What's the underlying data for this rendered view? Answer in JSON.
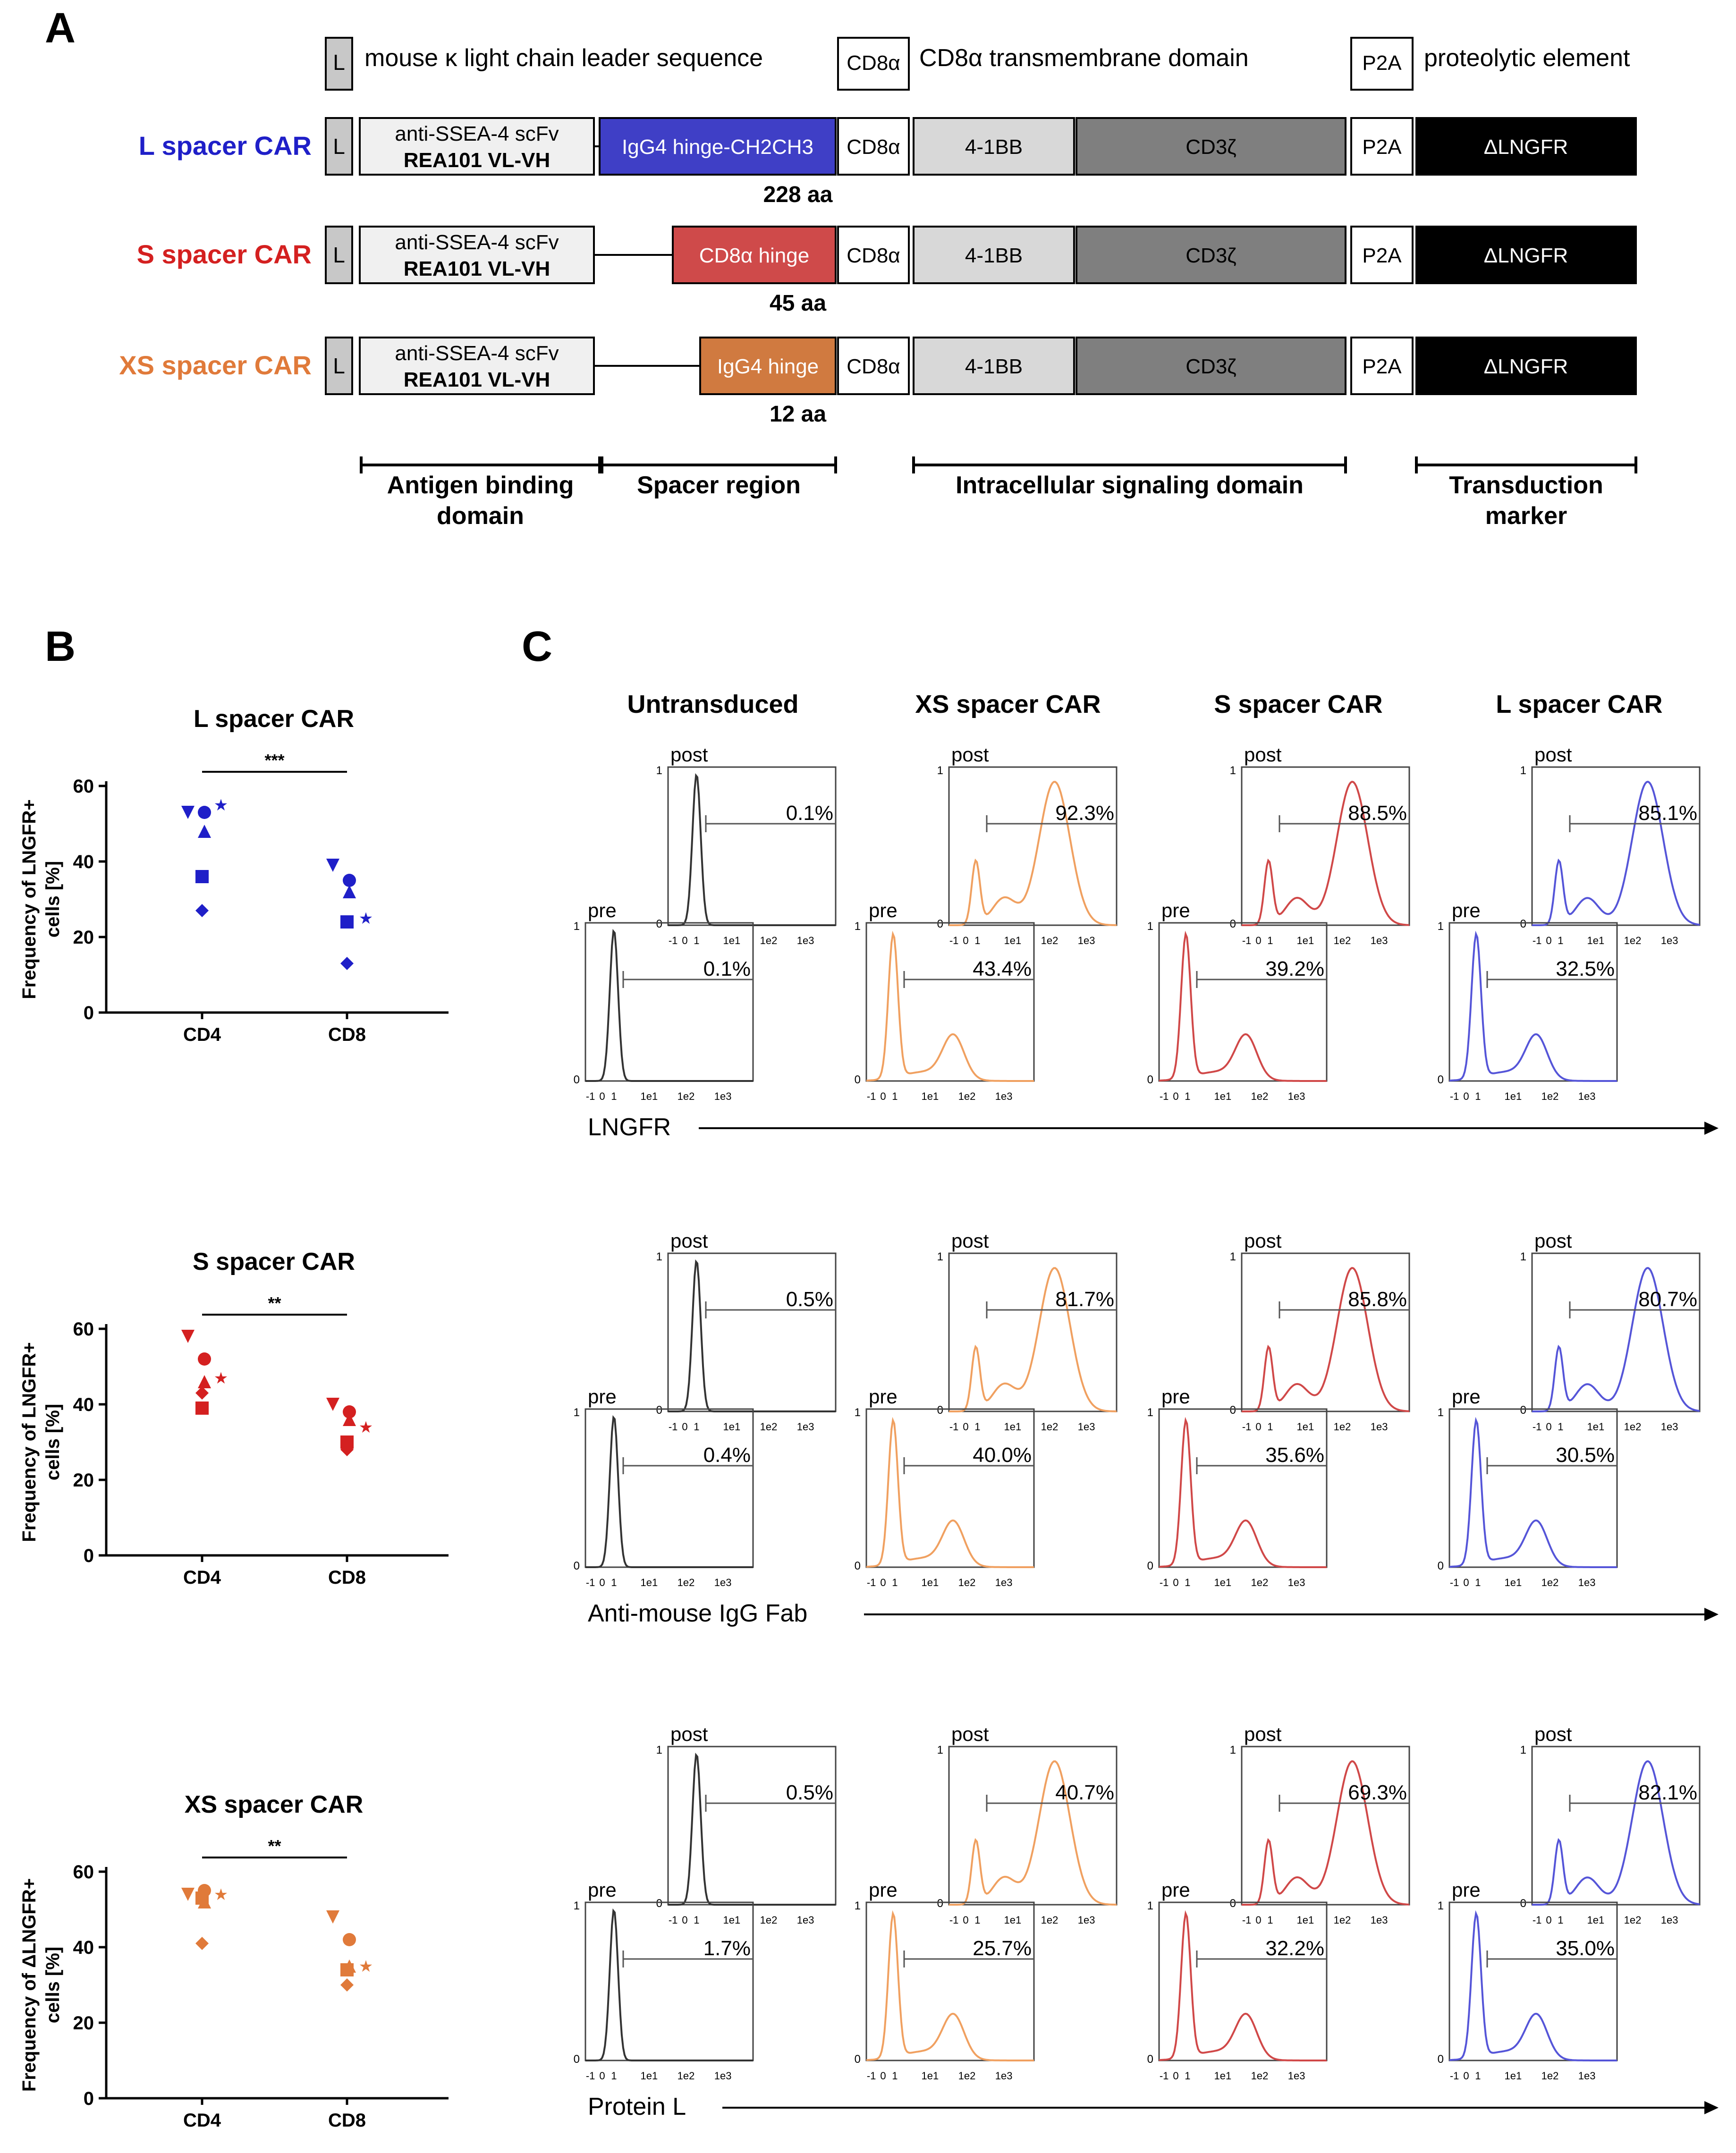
{
  "panel_a": {
    "letter": "A",
    "legend": {
      "l_box": "L",
      "l_text": "mouse κ light chain leader sequence",
      "cd8_box": "CD8α",
      "cd8_text": "CD8α transmembrane domain",
      "p2a_box": "P2A",
      "p2a_text": "proteolytic element"
    },
    "constructs": [
      {
        "label": "L spacer CAR",
        "color": "#1f1fc8",
        "scfv_line1": "anti-SSEA-4 scFv",
        "scfv_line2": "REA101 VL-VH",
        "spacer": "IgG4 hinge-CH2CH3",
        "spacer_color": "#3f3fc6",
        "spacer_len": "228 aa"
      },
      {
        "label": "S spacer CAR",
        "color": "#d42020",
        "scfv_line1": "anti-SSEA-4 scFv",
        "scfv_line2": "REA101 VL-VH",
        "spacer": "CD8α hinge",
        "spacer_color": "#cf4a4a",
        "spacer_len": "45 aa"
      },
      {
        "label": "XS spacer CAR",
        "color": "#e07a3a",
        "scfv_line1": "anti-SSEA-4 scFv",
        "scfv_line2": "REA101 VL-VH",
        "spacer": "IgG4 hinge",
        "spacer_color": "#d07a40",
        "spacer_len": "12 aa"
      }
    ],
    "common_boxes": {
      "l": "L",
      "cd8": "CD8α",
      "bb": "4-1BB",
      "cd3": "CD3ζ",
      "p2a": "P2A",
      "lngfr": "ΔLNGFR"
    },
    "regions": [
      {
        "line1": "Antigen binding",
        "line2": "domain"
      },
      {
        "line1": "Spacer region",
        "line2": ""
      },
      {
        "line1": "Intracellular signaling domain",
        "line2": ""
      },
      {
        "line1": "Transduction",
        "line2": "marker"
      }
    ]
  },
  "panel_b": {
    "letter": "B",
    "chart_data": [
      {
        "type": "scatter",
        "title": "L spacer CAR",
        "ylabel_line1": "Frequency of LNGFR+",
        "ylabel_line2": "cells [%]",
        "categories": [
          "CD4",
          "CD8"
        ],
        "ylim": [
          0,
          60
        ],
        "yticks": [
          "0",
          "20",
          "40",
          "60"
        ],
        "color": "#1f1fc8",
        "significance": "***",
        "series": [
          {
            "name": "CD4",
            "values": [
              53,
              53,
              48,
              55,
              36,
              27
            ]
          },
          {
            "name": "CD8",
            "values": [
              39,
              35,
              32,
              25,
              24,
              13
            ]
          }
        ]
      },
      {
        "type": "scatter",
        "title": "S spacer CAR",
        "ylabel_line1": "Frequency of LNGFR+",
        "ylabel_line2": "cells [%]",
        "categories": [
          "CD4",
          "CD8"
        ],
        "ylim": [
          0,
          60
        ],
        "yticks": [
          "0",
          "20",
          "40",
          "60"
        ],
        "color": "#d42020",
        "significance": "**",
        "series": [
          {
            "name": "CD4",
            "values": [
              58,
              52,
              46,
              47,
              39,
              43
            ]
          },
          {
            "name": "CD8",
            "values": [
              40,
              38,
              36,
              34,
              30,
              28
            ]
          }
        ]
      },
      {
        "type": "scatter",
        "title": "XS spacer CAR",
        "ylabel_line1": "Frequency of ΔLNGFR+",
        "ylabel_line2": "cells [%]",
        "categories": [
          "CD4",
          "CD8"
        ],
        "ylim": [
          0,
          60
        ],
        "yticks": [
          "0",
          "20",
          "40",
          "60"
        ],
        "color": "#e07a3a",
        "significance": "**",
        "series": [
          {
            "name": "CD4",
            "values": [
              54,
              55,
              52,
              54,
              53,
              41
            ]
          },
          {
            "name": "CD8",
            "values": [
              48,
              42,
              35,
              35,
              34,
              30
            ]
          }
        ]
      }
    ]
  },
  "panel_c": {
    "letter": "C",
    "columns": [
      {
        "title": "Untransduced",
        "color": "#333333",
        "post_shape": "narrow",
        "pre_shape": "narrow"
      },
      {
        "title": "XS spacer CAR",
        "color": "#f0a060",
        "post_shape": "bimodal_high",
        "pre_shape": "bimodal_low"
      },
      {
        "title": "S spacer CAR",
        "color": "#d04848",
        "post_shape": "bimodal_high",
        "pre_shape": "bimodal_low"
      },
      {
        "title": "L spacer CAR",
        "color": "#5555d8",
        "post_shape": "bimodal_high",
        "pre_shape": "bimodal_low"
      }
    ],
    "rows": [
      {
        "axis_label": "LNGFR",
        "post": [
          "0.1%",
          "92.3%",
          "88.5%",
          "85.1%"
        ],
        "pre": [
          "0.1%",
          "43.4%",
          "39.2%",
          "32.5%"
        ]
      },
      {
        "axis_label": "Anti-mouse IgG Fab",
        "post": [
          "0.5%",
          "81.7%",
          "85.8%",
          "80.7%"
        ],
        "pre": [
          "0.4%",
          "40.0%",
          "35.6%",
          "30.5%"
        ]
      },
      {
        "axis_label": "Protein L",
        "post": [
          "0.5%",
          "40.7%",
          "69.3%",
          "82.1%"
        ],
        "pre": [
          "1.7%",
          "25.7%",
          "32.2%",
          "35.0%"
        ]
      }
    ],
    "post_label": "post",
    "pre_label": "pre",
    "y_tick_max": "1",
    "y_tick_min": "0",
    "x_ticks": [
      "-1",
      "0",
      "1",
      "1e1",
      "1e2",
      "1e3"
    ]
  }
}
